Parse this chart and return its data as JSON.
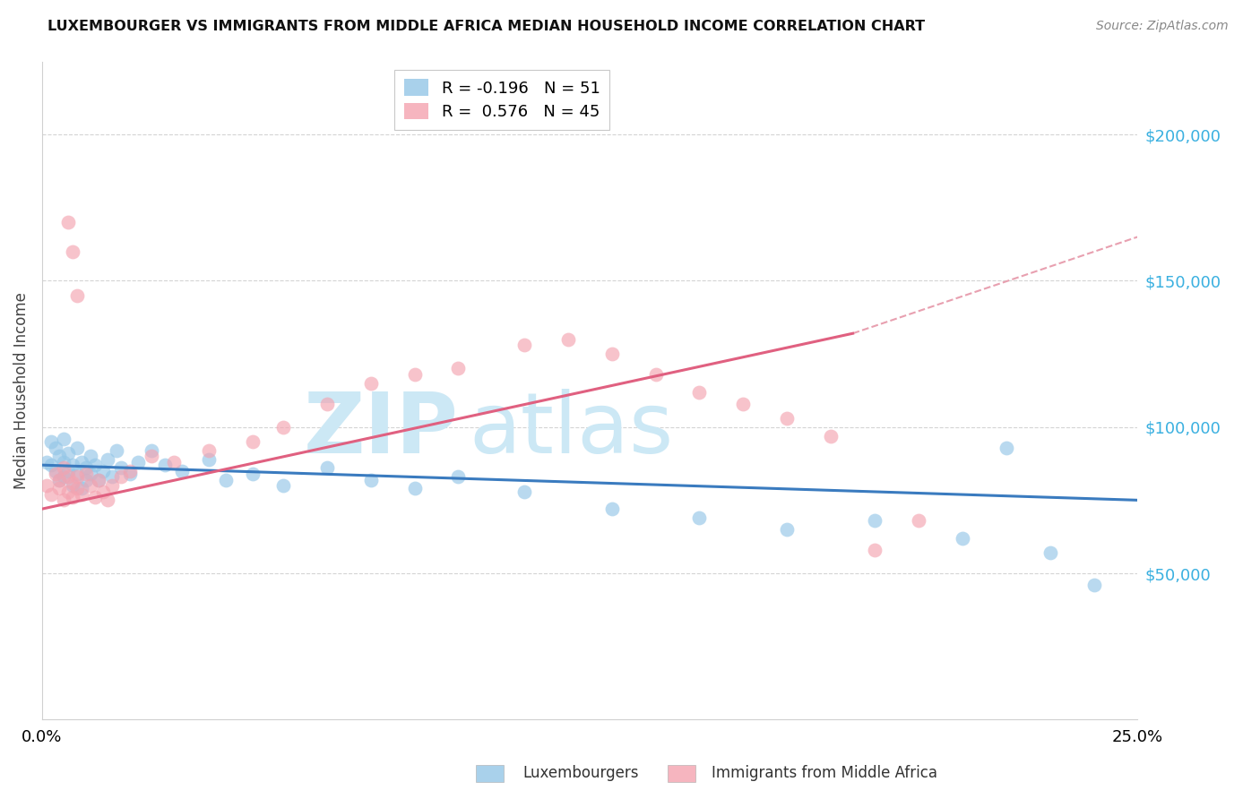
{
  "title": "LUXEMBOURGER VS IMMIGRANTS FROM MIDDLE AFRICA MEDIAN HOUSEHOLD INCOME CORRELATION CHART",
  "source": "Source: ZipAtlas.com",
  "ylabel": "Median Household Income",
  "xlim": [
    0.0,
    0.25
  ],
  "ylim": [
    0,
    225000
  ],
  "yticks": [
    50000,
    100000,
    150000,
    200000
  ],
  "ytick_labels": [
    "$50,000",
    "$100,000",
    "$150,000",
    "$200,000"
  ],
  "xticks": [
    0.0,
    0.05,
    0.1,
    0.15,
    0.2,
    0.25
  ],
  "xtick_labels": [
    "0.0%",
    "",
    "",
    "",
    "",
    "25.0%"
  ],
  "legend_R1": "-0.196",
  "legend_N1": "51",
  "legend_R2": "0.576",
  "legend_N2": "45",
  "legend_label1": "Luxembourgers",
  "legend_label2": "Immigrants from Middle Africa",
  "blue_color": "#94c6e7",
  "pink_color": "#f4a3b0",
  "blue_line_color": "#3a7bbf",
  "pink_line_color": "#e06080",
  "pink_dash_color": "#e8a0b0",
  "watermark_color": "#cce8f5",
  "blue_x": [
    0.001,
    0.002,
    0.002,
    0.003,
    0.003,
    0.004,
    0.004,
    0.005,
    0.005,
    0.005,
    0.006,
    0.006,
    0.007,
    0.007,
    0.008,
    0.008,
    0.009,
    0.009,
    0.01,
    0.01,
    0.011,
    0.011,
    0.012,
    0.013,
    0.014,
    0.015,
    0.016,
    0.017,
    0.018,
    0.02,
    0.022,
    0.025,
    0.028,
    0.032,
    0.038,
    0.042,
    0.048,
    0.055,
    0.065,
    0.075,
    0.085,
    0.095,
    0.11,
    0.13,
    0.15,
    0.17,
    0.19,
    0.21,
    0.23,
    0.22,
    0.24
  ],
  "blue_y": [
    88000,
    95000,
    87000,
    93000,
    85000,
    90000,
    82000,
    96000,
    88000,
    83000,
    91000,
    85000,
    87000,
    80000,
    93000,
    84000,
    79000,
    88000,
    86000,
    82000,
    90000,
    84000,
    87000,
    82000,
    85000,
    89000,
    83000,
    92000,
    86000,
    84000,
    88000,
    92000,
    87000,
    85000,
    89000,
    82000,
    84000,
    80000,
    86000,
    82000,
    79000,
    83000,
    78000,
    72000,
    69000,
    65000,
    68000,
    62000,
    57000,
    93000,
    46000
  ],
  "pink_x": [
    0.001,
    0.002,
    0.003,
    0.004,
    0.004,
    0.005,
    0.005,
    0.006,
    0.006,
    0.007,
    0.007,
    0.008,
    0.008,
    0.009,
    0.01,
    0.011,
    0.012,
    0.013,
    0.014,
    0.015,
    0.016,
    0.018,
    0.02,
    0.025,
    0.03,
    0.038,
    0.048,
    0.055,
    0.065,
    0.075,
    0.085,
    0.095,
    0.11,
    0.12,
    0.13,
    0.14,
    0.15,
    0.16,
    0.17,
    0.18,
    0.006,
    0.007,
    0.008,
    0.19,
    0.2
  ],
  "pink_y": [
    80000,
    77000,
    84000,
    82000,
    79000,
    86000,
    75000,
    83000,
    78000,
    81000,
    76000,
    83000,
    79000,
    77000,
    84000,
    80000,
    76000,
    82000,
    78000,
    75000,
    80000,
    83000,
    85000,
    90000,
    88000,
    92000,
    95000,
    100000,
    108000,
    115000,
    118000,
    120000,
    128000,
    130000,
    125000,
    118000,
    112000,
    108000,
    103000,
    97000,
    170000,
    160000,
    145000,
    58000,
    68000
  ]
}
